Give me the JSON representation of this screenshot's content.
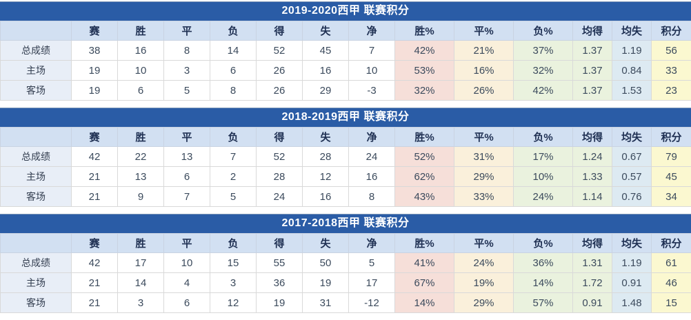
{
  "colors": {
    "title_bar_bg": "#2A5CA6",
    "title_text": "#FFFFFF",
    "header_row_bg": "#D2E0F2",
    "label_col_bg": "#E8EEF7",
    "win_pct_bg": "#F6DFD9",
    "draw_pct_bg": "#FAF0DB",
    "loss_pct_bg": "#EAF2DE",
    "avg_for_bg": "#EAF2DE",
    "avg_against_bg": "#DDEAF2",
    "points_bg": "#FBF8D0"
  },
  "columns": [
    {
      "key": "row_label",
      "label": ""
    },
    {
      "key": "played",
      "label": "赛"
    },
    {
      "key": "wins",
      "label": "胜"
    },
    {
      "key": "draws",
      "label": "平"
    },
    {
      "key": "losses",
      "label": "负"
    },
    {
      "key": "goals_for",
      "label": "得"
    },
    {
      "key": "goals_against",
      "label": "失"
    },
    {
      "key": "goal_diff",
      "label": "净"
    },
    {
      "key": "win_pct",
      "label": "胜%",
      "tint": "win_pct_bg"
    },
    {
      "key": "draw_pct",
      "label": "平%",
      "tint": "draw_pct_bg"
    },
    {
      "key": "loss_pct",
      "label": "负%",
      "tint": "loss_pct_bg"
    },
    {
      "key": "avg_for",
      "label": "均得",
      "tint": "avg_for_bg"
    },
    {
      "key": "avg_against",
      "label": "均失",
      "tint": "avg_against_bg"
    },
    {
      "key": "points",
      "label": "积分",
      "tint": "points_bg"
    }
  ],
  "tables": [
    {
      "title": "2019-2020西甲 联赛积分",
      "rows": [
        {
          "label": "总成绩",
          "values": [
            "38",
            "16",
            "8",
            "14",
            "52",
            "45",
            "7",
            "42%",
            "21%",
            "37%",
            "1.37",
            "1.19",
            "56"
          ]
        },
        {
          "label": "主场",
          "values": [
            "19",
            "10",
            "3",
            "6",
            "26",
            "16",
            "10",
            "53%",
            "16%",
            "32%",
            "1.37",
            "0.84",
            "33"
          ]
        },
        {
          "label": "客场",
          "values": [
            "19",
            "6",
            "5",
            "8",
            "26",
            "29",
            "-3",
            "32%",
            "26%",
            "42%",
            "1.37",
            "1.53",
            "23"
          ]
        }
      ]
    },
    {
      "title": "2018-2019西甲 联赛积分",
      "rows": [
        {
          "label": "总成绩",
          "values": [
            "42",
            "22",
            "13",
            "7",
            "52",
            "28",
            "24",
            "52%",
            "31%",
            "17%",
            "1.24",
            "0.67",
            "79"
          ]
        },
        {
          "label": "主场",
          "values": [
            "21",
            "13",
            "6",
            "2",
            "28",
            "12",
            "16",
            "62%",
            "29%",
            "10%",
            "1.33",
            "0.57",
            "45"
          ]
        },
        {
          "label": "客场",
          "values": [
            "21",
            "9",
            "7",
            "5",
            "24",
            "16",
            "8",
            "43%",
            "33%",
            "24%",
            "1.14",
            "0.76",
            "34"
          ]
        }
      ]
    },
    {
      "title": "2017-2018西甲 联赛积分",
      "rows": [
        {
          "label": "总成绩",
          "values": [
            "42",
            "17",
            "10",
            "15",
            "55",
            "50",
            "5",
            "41%",
            "24%",
            "36%",
            "1.31",
            "1.19",
            "61"
          ]
        },
        {
          "label": "主场",
          "values": [
            "21",
            "14",
            "4",
            "3",
            "36",
            "19",
            "17",
            "67%",
            "19%",
            "14%",
            "1.72",
            "0.91",
            "46"
          ]
        },
        {
          "label": "客场",
          "values": [
            "21",
            "3",
            "6",
            "12",
            "19",
            "31",
            "-12",
            "14%",
            "29%",
            "57%",
            "0.91",
            "1.48",
            "15"
          ]
        }
      ]
    }
  ]
}
